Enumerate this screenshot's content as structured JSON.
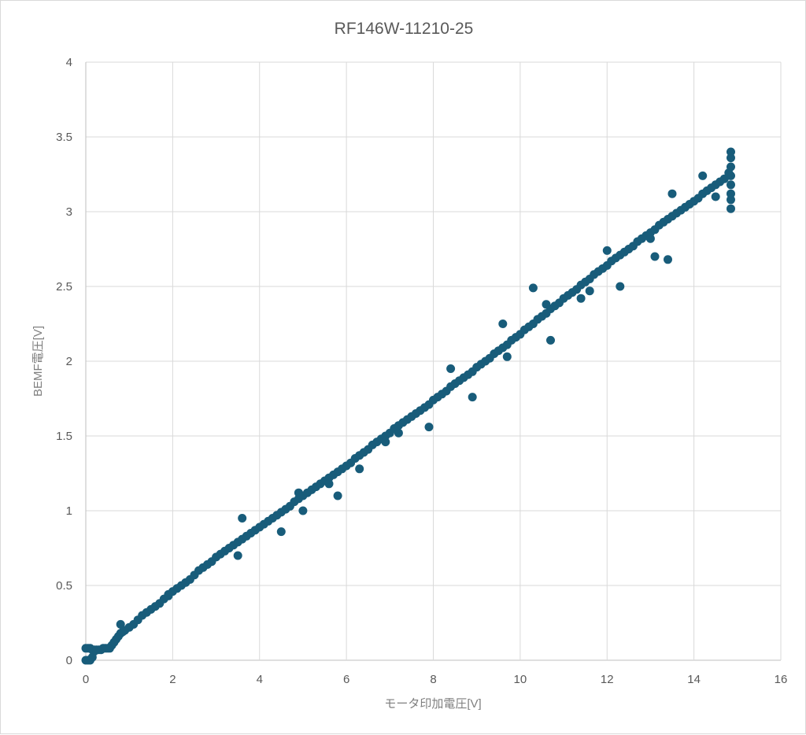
{
  "chart_data": {
    "type": "scatter",
    "title": "RF146W-11210-25",
    "xlabel": "モータ印加電圧[V]",
    "ylabel": "BEMF電圧[V]",
    "xlim": [
      0,
      16
    ],
    "ylim": [
      0,
      4
    ],
    "x_ticks": [
      0,
      2,
      4,
      6,
      8,
      10,
      12,
      14,
      16
    ],
    "y_ticks": [
      0,
      0.5,
      1,
      1.5,
      2,
      2.5,
      3,
      3.5,
      4
    ],
    "x_tick_labels": [
      "0",
      "2",
      "4",
      "6",
      "8",
      "10",
      "12",
      "14",
      "16"
    ],
    "y_tick_labels": [
      "0",
      "0.5",
      "1",
      "1.5",
      "2",
      "2.5",
      "3",
      "3.5",
      "4"
    ],
    "grid": true,
    "legend": "none",
    "marker_color": "#185c7a",
    "series": [
      {
        "x": [
          0.0,
          0.05,
          0.1,
          0.15,
          0.2,
          0.0,
          0.05,
          0.1,
          0.15,
          0.2,
          0.25,
          0.3,
          0.35,
          0.4,
          0.45,
          0.5,
          0.55,
          0.6,
          0.65,
          0.7,
          0.75,
          0.8,
          0.85,
          0.9,
          1.0,
          1.1,
          1.2,
          1.3,
          1.4,
          1.5,
          1.6,
          1.7,
          1.8,
          1.9,
          2.0,
          2.1,
          2.2,
          2.3,
          2.4,
          2.5,
          2.6,
          2.7,
          2.8,
          2.9,
          3.0,
          3.1,
          3.2,
          3.3,
          3.4,
          3.5,
          3.6,
          3.7,
          3.8,
          3.9,
          4.0,
          4.1,
          4.2,
          4.3,
          4.4,
          4.5,
          4.6,
          4.7,
          4.8,
          4.9,
          5.0,
          5.1,
          5.2,
          5.3,
          5.4,
          5.5,
          5.6,
          5.7,
          5.8,
          5.9,
          6.0,
          6.1,
          6.2,
          6.3,
          6.4,
          6.5,
          6.6,
          6.7,
          6.8,
          6.9,
          7.0,
          7.1,
          7.2,
          7.3,
          7.4,
          7.5,
          7.6,
          7.7,
          7.8,
          7.9,
          8.0,
          8.1,
          8.2,
          8.3,
          8.4,
          8.5,
          8.6,
          8.7,
          8.8,
          8.9,
          9.0,
          9.1,
          9.2,
          9.3,
          9.4,
          9.5,
          9.6,
          9.7,
          9.8,
          9.9,
          10.0,
          10.1,
          10.2,
          10.3,
          10.4,
          10.5,
          10.6,
          10.7,
          10.8,
          10.9,
          11.0,
          11.1,
          11.2,
          11.3,
          11.4,
          11.5,
          11.6,
          11.7,
          11.8,
          11.9,
          12.0,
          12.1,
          12.2,
          12.3,
          12.4,
          12.5,
          12.6,
          12.7,
          12.8,
          12.9,
          13.0,
          13.1,
          13.2,
          13.3,
          13.4,
          13.5,
          13.6,
          13.7,
          13.8,
          13.9,
          14.0,
          14.1,
          14.2,
          14.3,
          14.4,
          14.5,
          14.6,
          14.7,
          14.8,
          14.85,
          14.85,
          14.85,
          14.85,
          14.85,
          14.85,
          14.85,
          14.85,
          0.8,
          1.9,
          3.5,
          4.5,
          5.0,
          5.6,
          6.3,
          7.2,
          8.4,
          9.6,
          10.3,
          10.6,
          11.4,
          12.0,
          12.3,
          13.1,
          13.4,
          13.5,
          14.2,
          14.5,
          13.0,
          11.6,
          10.7,
          9.7,
          8.9,
          7.9,
          6.9,
          5.8,
          4.9,
          3.6
        ],
        "y": [
          0.0,
          0.0,
          0.0,
          0.02,
          0.06,
          0.08,
          0.08,
          0.08,
          0.07,
          0.07,
          0.07,
          0.07,
          0.07,
          0.08,
          0.08,
          0.08,
          0.08,
          0.1,
          0.12,
          0.14,
          0.16,
          0.18,
          0.19,
          0.2,
          0.22,
          0.24,
          0.27,
          0.3,
          0.32,
          0.34,
          0.36,
          0.38,
          0.41,
          0.43,
          0.46,
          0.48,
          0.5,
          0.52,
          0.54,
          0.57,
          0.6,
          0.62,
          0.64,
          0.66,
          0.69,
          0.71,
          0.73,
          0.75,
          0.77,
          0.79,
          0.81,
          0.83,
          0.85,
          0.87,
          0.89,
          0.91,
          0.93,
          0.95,
          0.97,
          0.99,
          1.01,
          1.03,
          1.06,
          1.08,
          1.1,
          1.12,
          1.14,
          1.16,
          1.18,
          1.2,
          1.22,
          1.24,
          1.26,
          1.28,
          1.3,
          1.32,
          1.35,
          1.37,
          1.39,
          1.41,
          1.44,
          1.46,
          1.48,
          1.5,
          1.52,
          1.55,
          1.57,
          1.59,
          1.61,
          1.63,
          1.65,
          1.67,
          1.69,
          1.71,
          1.74,
          1.76,
          1.78,
          1.8,
          1.83,
          1.85,
          1.87,
          1.89,
          1.91,
          1.93,
          1.96,
          1.98,
          2.0,
          2.02,
          2.05,
          2.07,
          2.09,
          2.11,
          2.14,
          2.16,
          2.18,
          2.21,
          2.23,
          2.25,
          2.28,
          2.3,
          2.32,
          2.35,
          2.37,
          2.39,
          2.42,
          2.44,
          2.46,
          2.48,
          2.51,
          2.53,
          2.55,
          2.58,
          2.6,
          2.62,
          2.64,
          2.67,
          2.69,
          2.71,
          2.73,
          2.75,
          2.77,
          2.8,
          2.82,
          2.84,
          2.86,
          2.88,
          2.91,
          2.93,
          2.95,
          2.97,
          2.99,
          3.01,
          3.03,
          3.05,
          3.07,
          3.09,
          3.12,
          3.14,
          3.16,
          3.18,
          3.2,
          3.22,
          3.26,
          3.02,
          3.08,
          3.12,
          3.18,
          3.24,
          3.3,
          3.36,
          3.4,
          0.24,
          0.44,
          0.7,
          0.86,
          1.0,
          1.18,
          1.28,
          1.52,
          1.95,
          2.25,
          2.49,
          2.38,
          2.42,
          2.74,
          2.5,
          2.7,
          2.68,
          3.12,
          3.24,
          3.1,
          2.82,
          2.47,
          2.14,
          2.03,
          1.76,
          1.56,
          1.46,
          1.1,
          1.12,
          0.95
        ]
      }
    ]
  }
}
